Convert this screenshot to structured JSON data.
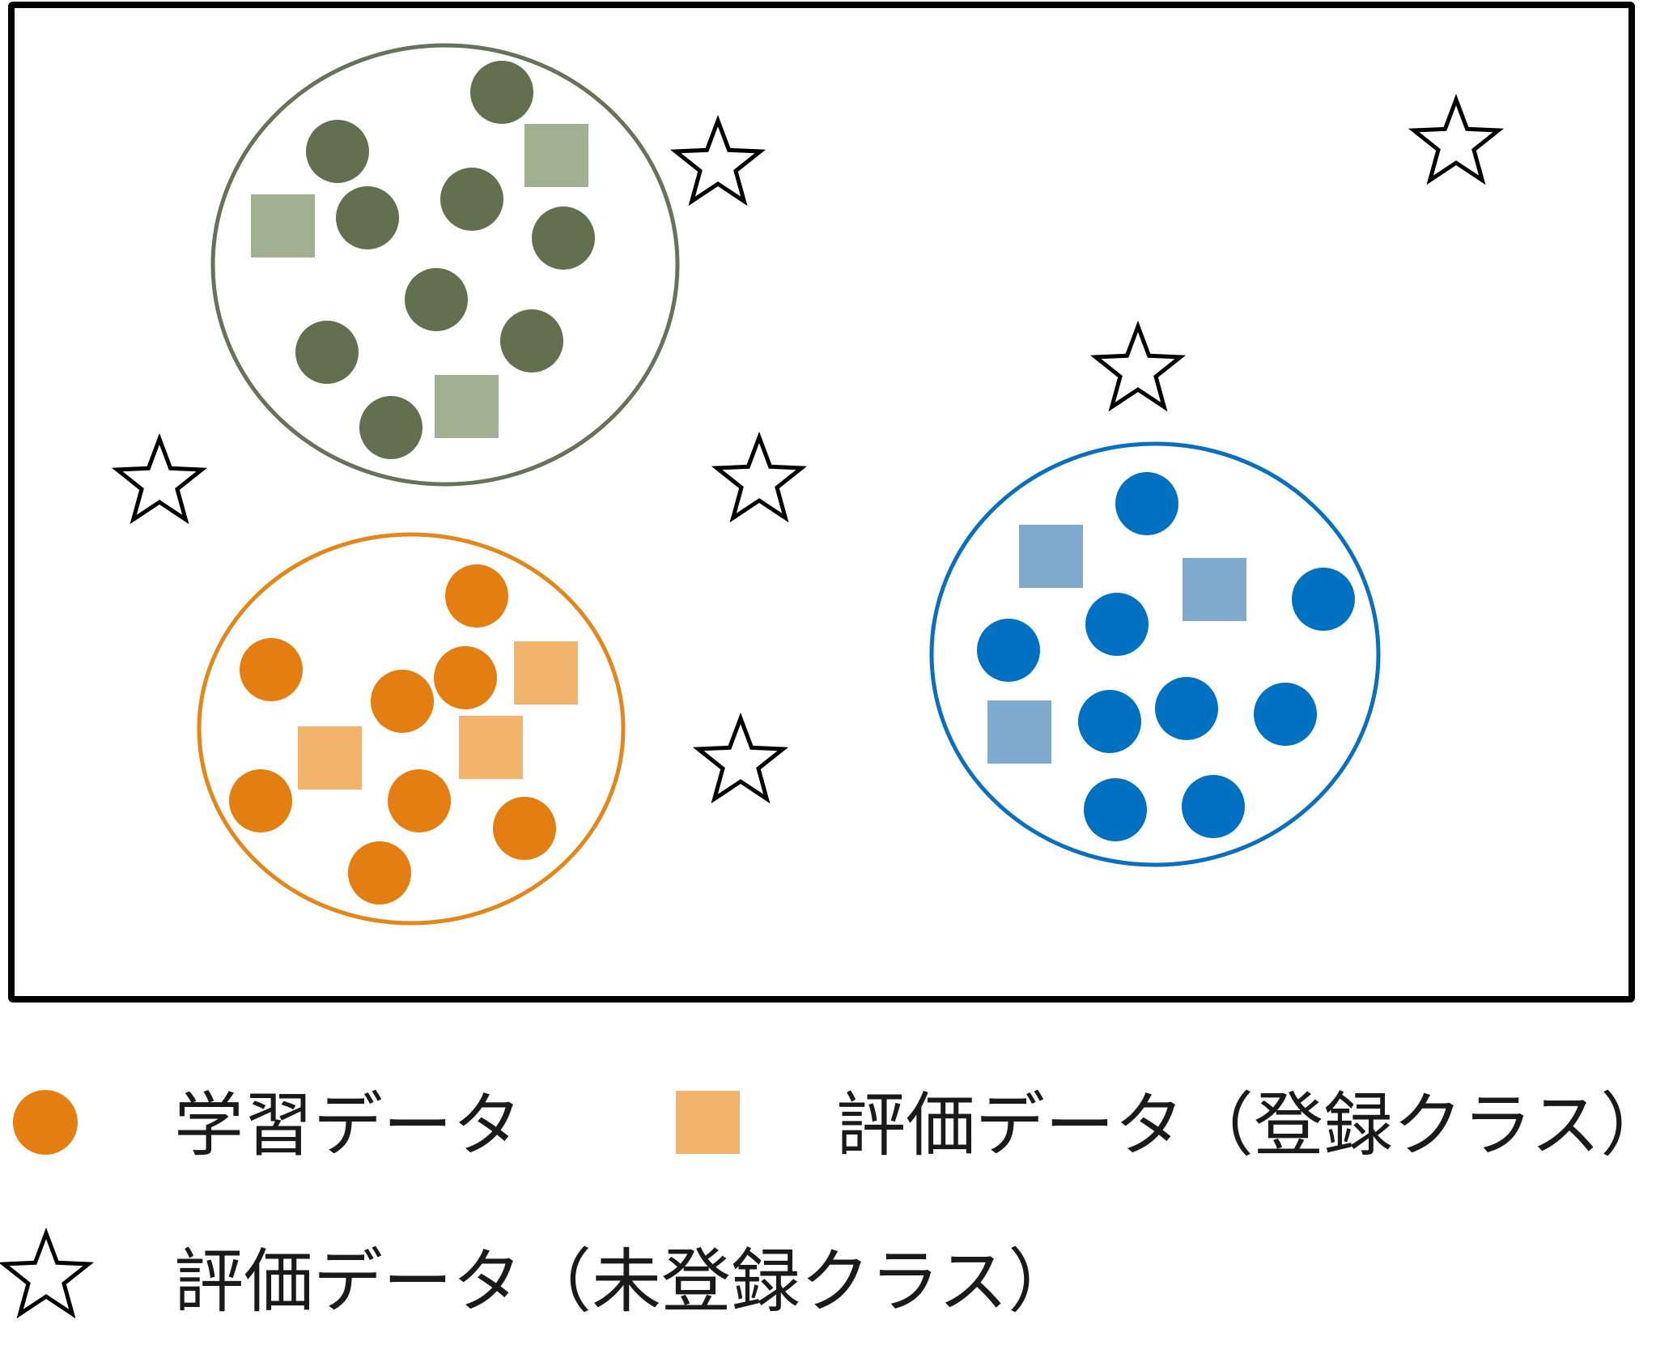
{
  "colors": {
    "frame": "#000000",
    "star_fill": "#ffffff",
    "star_stroke": "#000000",
    "legend_train_marker": "#e37e12",
    "legend_eval_marker": "#f2b36b"
  },
  "classes": [
    {
      "id": "green",
      "ring_color": "#66725a",
      "train_color": "#627050",
      "eval_color": "#a1b092"
    },
    {
      "id": "orange",
      "ring_color": "#e3861c",
      "train_color": "#e37e12",
      "eval_color": "#f2b36b"
    },
    {
      "id": "blue",
      "ring_color": "#0a6fbd",
      "train_color": "#0070c0",
      "eval_color": "#7fa9cd"
    }
  ],
  "legend": {
    "train_label": "学習データ",
    "eval_registered_label": "評価データ（登録クラス）",
    "eval_unregistered_label": "評価データ（未登録クラス）",
    "train_marker": "circle",
    "eval_registered_marker": "square",
    "eval_unregistered_marker": "star-icon"
  }
}
